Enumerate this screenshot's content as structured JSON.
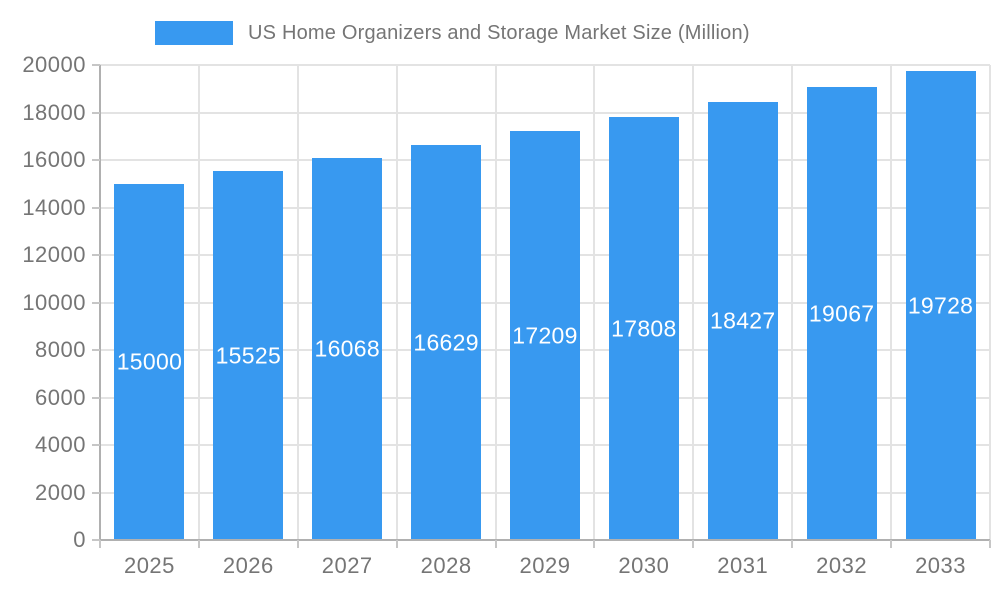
{
  "legend": {
    "label": "US Home Organizers and Storage Market Size (Million)",
    "swatch_color": "#3899f0"
  },
  "chart_data": {
    "type": "bar",
    "title": "US Home Organizers and Storage Market Size (Million)",
    "categories": [
      "2025",
      "2026",
      "2027",
      "2028",
      "2029",
      "2030",
      "2031",
      "2032",
      "2033"
    ],
    "values": [
      15000,
      15525,
      16068,
      16629,
      17209,
      17808,
      18427,
      19067,
      19728
    ],
    "value_labels": [
      "15000",
      "15525",
      "16068",
      "16629",
      "17209",
      "17808",
      "18427",
      "19067",
      "19728"
    ],
    "xlabel": "",
    "ylabel": "",
    "ylim": [
      0,
      20000
    ],
    "yticks": [
      0,
      2000,
      4000,
      6000,
      8000,
      10000,
      12000,
      14000,
      16000,
      18000,
      20000
    ],
    "grid": true,
    "legend_position": "top-center",
    "bar_color": "#3899f0",
    "value_label_color": "#ffffff",
    "colors": {
      "axis_text": "#757575",
      "title_text": "#757575",
      "grid_line": "#e3e3e3",
      "axis_line": "#b0b0b0",
      "tick_line": "#c6c6c6",
      "background": "#ffffff"
    }
  }
}
